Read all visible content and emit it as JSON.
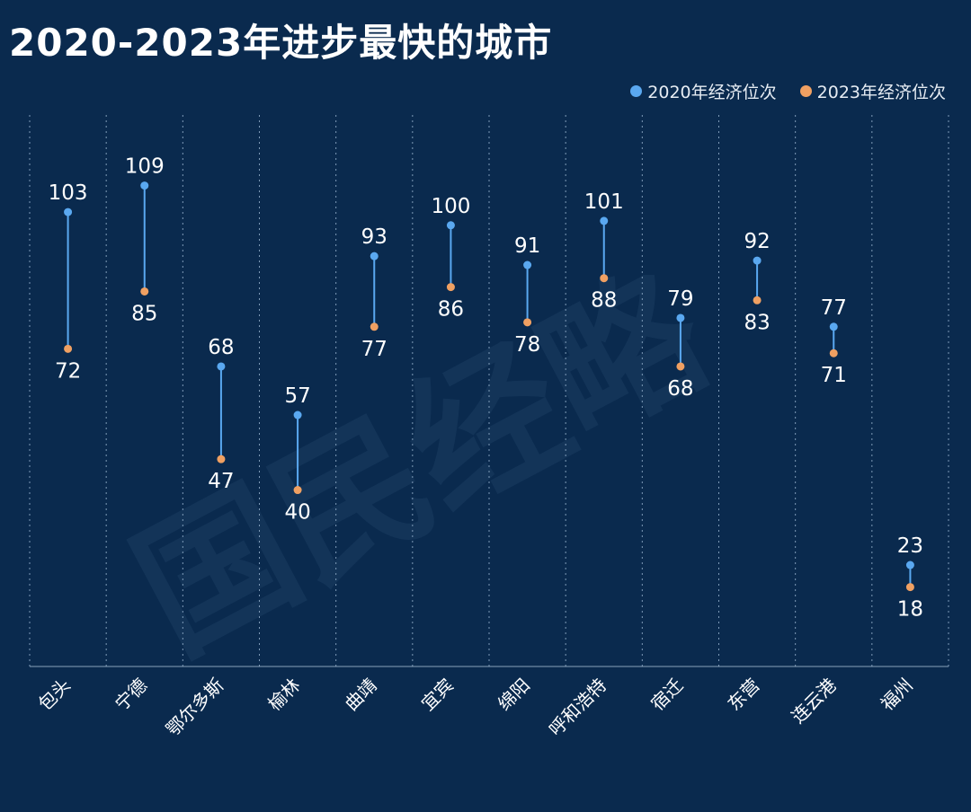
{
  "title": "2020-2023年进步最快的城市",
  "watermark": "国民经略",
  "colors": {
    "background": "#0a2a4e",
    "series_2020": "#5aa8f0",
    "series_2023": "#f0a062",
    "connector": "#5aa8f0"
  },
  "chart_data": {
    "type": "dumbbell",
    "categories": [
      "包头",
      "宁德",
      "鄂尔多斯",
      "榆林",
      "曲靖",
      "宜宾",
      "绵阳",
      "呼和浩特",
      "宿迁",
      "东营",
      "连云港",
      "福州"
    ],
    "series": [
      {
        "name": "2020年经济位次",
        "values": [
          103,
          109,
          68,
          57,
          93,
          100,
          91,
          101,
          79,
          92,
          77,
          23
        ]
      },
      {
        "name": "2023年经济位次",
        "values": [
          72,
          85,
          47,
          40,
          77,
          86,
          78,
          88,
          68,
          83,
          71,
          18
        ]
      }
    ],
    "ylim": [
      0,
      125
    ],
    "grid": "vertical-dotted",
    "legend_position": "top-right"
  }
}
